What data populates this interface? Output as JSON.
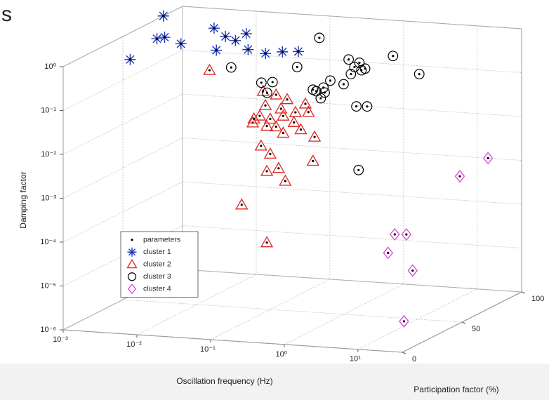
{
  "corner_text": "s",
  "chart_data": {
    "type": "scatter3d",
    "x_label": "Oscillation frequency (Hz)",
    "y_label": "Participation factor (%)",
    "z_label": "Damping factor",
    "xscale": "log",
    "zscale": "log",
    "xlim": [
      0.001,
      40
    ],
    "ylim": [
      0,
      100
    ],
    "zlim": [
      1e-06,
      1
    ],
    "xticks": [
      {
        "value": 0.001,
        "label": "10⁻³"
      },
      {
        "value": 0.01,
        "label": "10⁻²"
      },
      {
        "value": 0.1,
        "label": "10⁻¹"
      },
      {
        "value": 1,
        "label": "10⁰"
      },
      {
        "value": 10,
        "label": "10¹"
      }
    ],
    "yticks": [
      0,
      50,
      100
    ],
    "zticks": [
      {
        "value": 1e-06,
        "label": "10⁻⁶"
      },
      {
        "value": 1e-05,
        "label": "10⁻⁵"
      },
      {
        "value": 0.0001,
        "label": "10⁻⁴"
      },
      {
        "value": 0.001,
        "label": "10⁻³"
      },
      {
        "value": 0.01,
        "label": "10⁻²"
      },
      {
        "value": 0.1,
        "label": "10⁻¹"
      },
      {
        "value": 1,
        "label": "10⁰"
      }
    ],
    "grid": true,
    "legend": "lower left",
    "series": [
      {
        "name": "parameters",
        "color": "#000000",
        "marker": "dot"
      },
      {
        "name": "cluster 1",
        "color": "#1a33b8",
        "marker": "star",
        "x": [
          0.001,
          0.0043,
          0.0029,
          0.0033,
          0.0074,
          0.0079,
          0.017,
          0.028,
          0.026,
          0.028,
          0.065,
          0.13,
          0.19,
          0.29
        ],
        "y": [
          84,
          17,
          50,
          53,
          45,
          71,
          60,
          55,
          66,
          39,
          43,
          39,
          43,
          45
        ],
        "z": [
          1,
          1,
          1,
          1,
          1,
          1,
          1,
          1,
          1,
          1,
          1,
          1,
          1,
          1
        ]
      },
      {
        "name": "cluster 2",
        "color": "#e0231f",
        "marker": "triangle",
        "x": [
          0.015,
          0.08,
          0.12,
          0.17,
          0.3,
          0.086,
          0.14,
          0.22,
          0.072,
          0.1,
          0.15,
          0.12,
          0.21,
          0.058,
          0.09,
          0.26,
          0.15,
          0.4,
          0.075,
          0.1,
          0.38,
          0.13,
          0.09,
          0.16,
          0.041,
          0.09,
          0.33,
          0.06
        ],
        "y": [
          50,
          50,
          50,
          50,
          50,
          50,
          50,
          50,
          50,
          50,
          50,
          50,
          50,
          50,
          50,
          50,
          50,
          50,
          50,
          50,
          50,
          50,
          50,
          50,
          50,
          50,
          50,
          50
        ],
        "z": [
          0.23,
          0.092,
          0.08,
          0.065,
          0.055,
          0.044,
          0.039,
          0.034,
          0.025,
          0.022,
          0.027,
          0.015,
          0.02,
          0.017,
          0.015,
          0.014,
          0.011,
          0.01,
          0.0052,
          0.0035,
          0.0028,
          0.0017,
          0.0014,
          0.00089,
          0.00022,
          3.3e-05,
          0.036,
          0.021
        ]
      },
      {
        "name": "cluster 3",
        "color": "#000000",
        "marker": "circle",
        "x": [
          0.014,
          0.22,
          0.11,
          0.036,
          0.051,
          0.043,
          0.2,
          0.25,
          0.18,
          0.31,
          0.47,
          0.55,
          0.59,
          0.66,
          0.82,
          0.92,
          0.77,
          2.2,
          5,
          0.7,
          0.98,
          0.75,
          0.26,
          0.23
        ],
        "y": [
          70,
          70,
          70,
          70,
          70,
          70,
          70,
          70,
          70,
          70,
          70,
          70,
          70,
          70,
          70,
          70,
          70,
          70,
          70,
          70,
          70,
          70,
          70,
          70
        ],
        "z": [
          0.14,
          0.9,
          0.18,
          0.07,
          0.075,
          0.042,
          0.054,
          0.067,
          0.058,
          0.099,
          0.086,
          0.32,
          0.15,
          0.22,
          0.19,
          0.21,
          0.28,
          0.45,
          0.19,
          0.028,
          0.029,
          0.001,
          0.052,
          0.038
        ]
      },
      {
        "name": "cluster 4",
        "color": "#e040e0",
        "marker": "diamond",
        "x": [
          14,
          5.8,
          1.6,
          2.3,
          1.3,
          2.8,
          20
        ],
        "y": [
          100,
          100,
          80,
          80,
          80,
          80,
          20
        ],
        "z": [
          0.001,
          0.00035,
          2.7e-05,
          2.8e-05,
          1e-05,
          4.3e-06,
          2.5e-06
        ]
      }
    ]
  }
}
